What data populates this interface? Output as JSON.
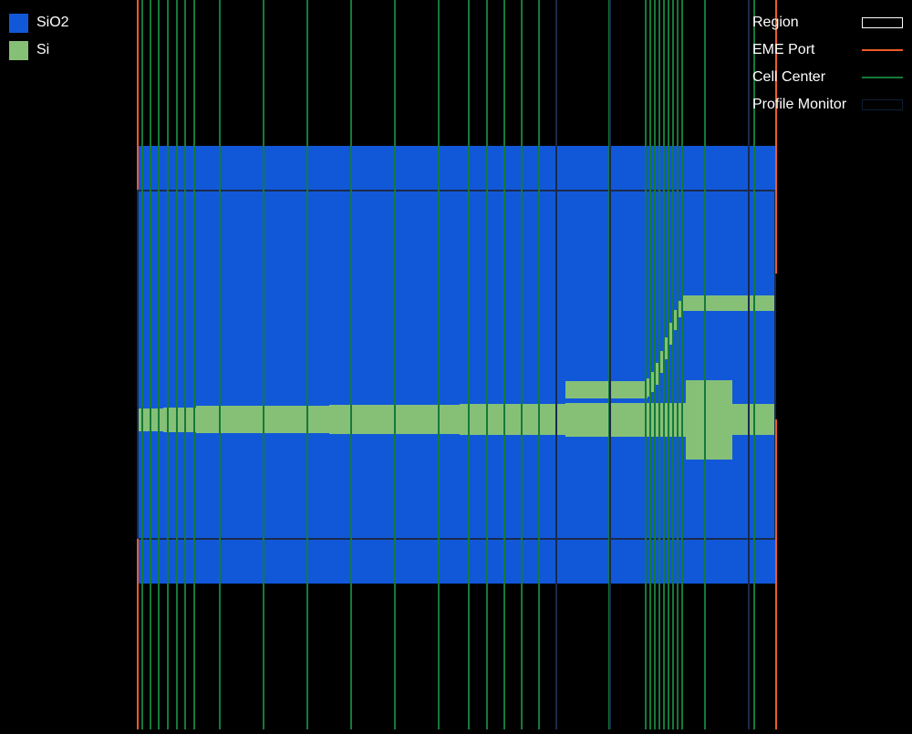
{
  "legend_materials": [
    {
      "name": "SiO2",
      "color": "#1158d9",
      "icon": "material-swatch"
    },
    {
      "name": "Si",
      "color": "#86c076",
      "icon": "material-swatch"
    }
  ],
  "legend_objects": [
    {
      "name": "Region",
      "color": "#ffffff",
      "style": "box"
    },
    {
      "name": "EME Port",
      "color": "#ef5a26",
      "style": "line"
    },
    {
      "name": "Cell Center",
      "color": "#147a3a",
      "style": "line"
    },
    {
      "name": "Profile Monitor",
      "color": "#0e1e36",
      "style": "box"
    }
  ],
  "colors": {
    "background": "#000000",
    "sio2": "#1158d9",
    "si": "#86c076",
    "eme_port": "#ef5a26",
    "cell_center": "#147a3a",
    "profile_monitor": "#1a2b4a"
  }
}
